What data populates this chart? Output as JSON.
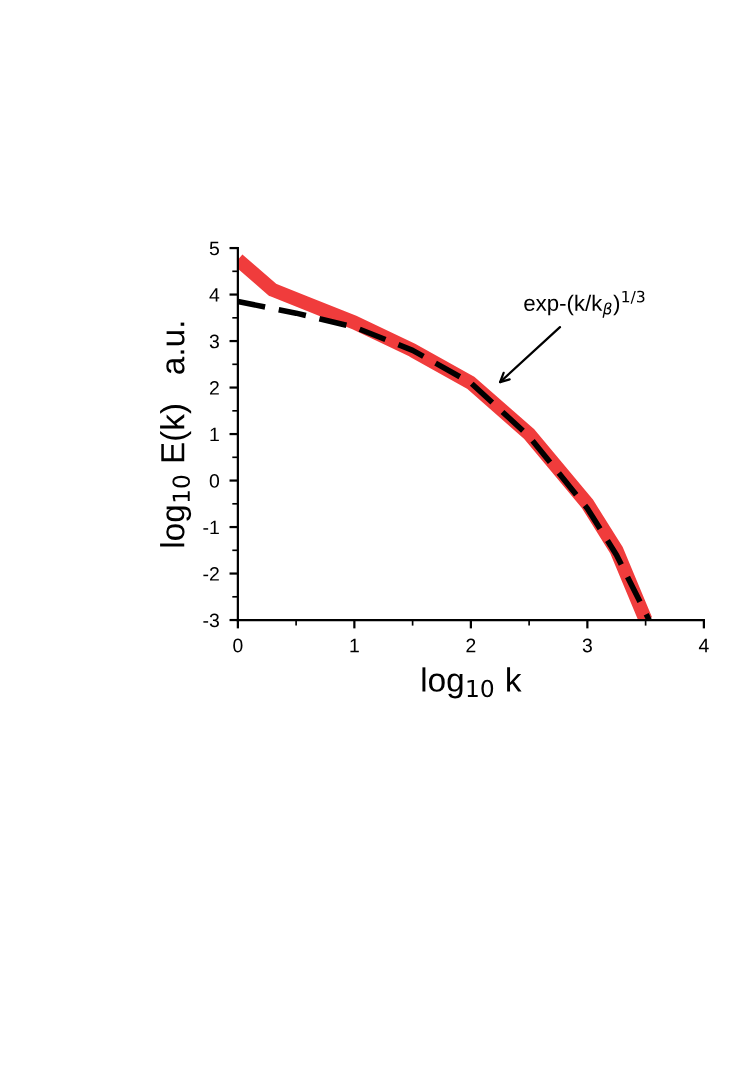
{
  "chart_data": {
    "type": "line",
    "xlabel": "log$_{10}$ k",
    "ylabel": "log$_{10}$ E(k)   a.u.",
    "xlim": [
      0,
      4
    ],
    "ylim": [
      -3,
      5
    ],
    "xticks": [
      0,
      1,
      2,
      3,
      4
    ],
    "yticks": [
      -3,
      -2,
      -1,
      0,
      1,
      2,
      3,
      4,
      5
    ],
    "grid": false,
    "series": [
      {
        "color": "#f03c3c",
        "line_style": "solid",
        "x": [
          0,
          0.3,
          0.6,
          1,
          1.5,
          2,
          2.5,
          3,
          3.25,
          3.5
        ],
        "values": [
          4.75,
          4.1,
          3.8,
          3.4,
          2.8,
          2.1,
          1.0,
          -0.5,
          -1.5,
          -3
        ]
      },
      {
        "color": "#000000",
        "line_style": "dashed",
        "x": [
          0,
          0.5,
          1,
          1.5,
          2,
          2.5,
          3,
          3.25,
          3.53
        ],
        "values": [
          3.85,
          3.6,
          3.3,
          2.8,
          2.1,
          0.95,
          -0.6,
          -1.6,
          -3
        ]
      }
    ],
    "annotations": [
      {
        "text": "exp-(k/k$_{β}$)$^{1/3}$",
        "x": 2.2,
        "y": 2.0
      }
    ]
  }
}
